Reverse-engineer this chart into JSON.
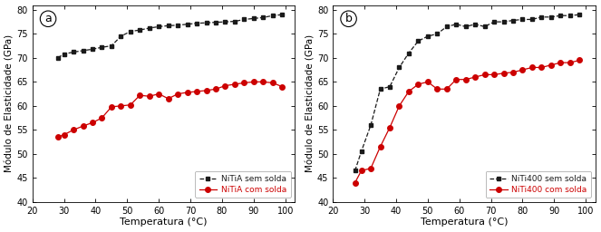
{
  "panel_a": {
    "label": "a",
    "black_label": "NiTiA sem solda",
    "red_label": "NiTiA com solda",
    "black_x": [
      28,
      30,
      33,
      36,
      39,
      42,
      45,
      48,
      51,
      54,
      57,
      60,
      63,
      66,
      69,
      72,
      75,
      78,
      81,
      84,
      87,
      90,
      93,
      96,
      99
    ],
    "black_y": [
      70.0,
      70.8,
      71.2,
      71.5,
      71.8,
      72.2,
      72.5,
      74.5,
      75.5,
      75.8,
      76.2,
      76.5,
      76.7,
      76.8,
      77.0,
      77.2,
      77.3,
      77.4,
      77.5,
      77.6,
      78.0,
      78.2,
      78.4,
      78.8,
      79.0
    ],
    "red_x": [
      28,
      30,
      33,
      36,
      39,
      42,
      45,
      48,
      51,
      54,
      57,
      60,
      63,
      66,
      69,
      72,
      75,
      78,
      81,
      84,
      87,
      90,
      93,
      96,
      99
    ],
    "red_y": [
      53.5,
      54.0,
      55.0,
      55.8,
      56.5,
      57.5,
      59.8,
      60.0,
      60.2,
      62.2,
      62.0,
      62.5,
      61.5,
      62.5,
      62.8,
      63.0,
      63.2,
      63.5,
      64.2,
      64.5,
      64.8,
      65.0,
      65.0,
      64.8,
      64.0
    ]
  },
  "panel_b": {
    "label": "b",
    "black_label": "NiTi400 sem solda",
    "red_label": "NiTi400 com solda",
    "black_x": [
      27,
      29,
      32,
      35,
      38,
      41,
      44,
      47,
      50,
      53,
      56,
      59,
      62,
      65,
      68,
      71,
      74,
      77,
      80,
      83,
      86,
      89,
      92,
      95,
      98
    ],
    "black_y": [
      46.5,
      50.5,
      56.0,
      63.5,
      64.0,
      68.0,
      71.0,
      73.5,
      74.5,
      75.0,
      76.5,
      77.0,
      76.5,
      77.0,
      76.5,
      77.5,
      77.5,
      77.8,
      78.0,
      78.0,
      78.5,
      78.5,
      78.8,
      78.8,
      79.0
    ],
    "red_x": [
      27,
      29,
      32,
      35,
      38,
      41,
      44,
      47,
      50,
      53,
      56,
      59,
      62,
      65,
      68,
      71,
      74,
      77,
      80,
      83,
      86,
      89,
      92,
      95,
      98
    ],
    "red_y": [
      44.0,
      46.5,
      47.0,
      51.5,
      55.5,
      60.0,
      63.0,
      64.5,
      65.0,
      63.5,
      63.5,
      65.5,
      65.5,
      66.0,
      66.5,
      66.5,
      66.8,
      67.0,
      67.5,
      68.0,
      68.0,
      68.5,
      69.0,
      69.0,
      69.5
    ]
  },
  "xlabel": "Temperatura (°C)",
  "ylabel": "Módulo de Elasticidade (GPa)",
  "xlim": [
    20,
    103
  ],
  "ylim": [
    40,
    81
  ],
  "xticks": [
    20,
    30,
    40,
    50,
    60,
    70,
    80,
    90,
    100
  ],
  "yticks": [
    40,
    45,
    50,
    55,
    60,
    65,
    70,
    75,
    80
  ],
  "black_color": "#1a1a1a",
  "red_color": "#cc0000",
  "bg_color": "#ffffff"
}
